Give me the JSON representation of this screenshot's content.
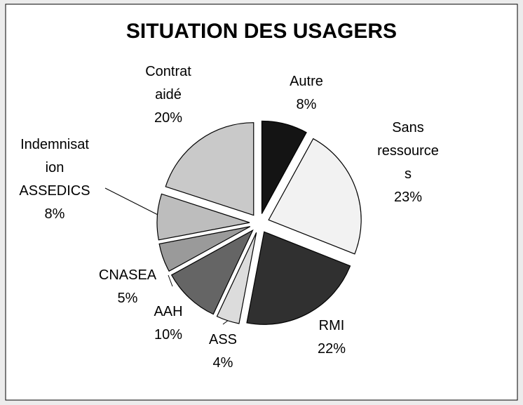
{
  "chart_data": {
    "type": "pie",
    "title": "SITUATION DES USAGERS",
    "categories": [
      "Autre",
      "Sans ressources",
      "RMI",
      "ASS",
      "AAH",
      "CNASEA",
      "Indemnisation ASSEDICS",
      "Contrat aidé"
    ],
    "values": [
      8,
      23,
      22,
      4,
      10,
      5,
      8,
      20
    ],
    "value_labels": [
      "8%",
      "23%",
      "22%",
      "4%",
      "10%",
      "5%",
      "8%",
      "20%"
    ],
    "colors": [
      "#141414",
      "#f2f2f2",
      "#303030",
      "#dcdcdc",
      "#656565",
      "#9a9a9a",
      "#bdbdbd",
      "#c9c9c9"
    ]
  }
}
